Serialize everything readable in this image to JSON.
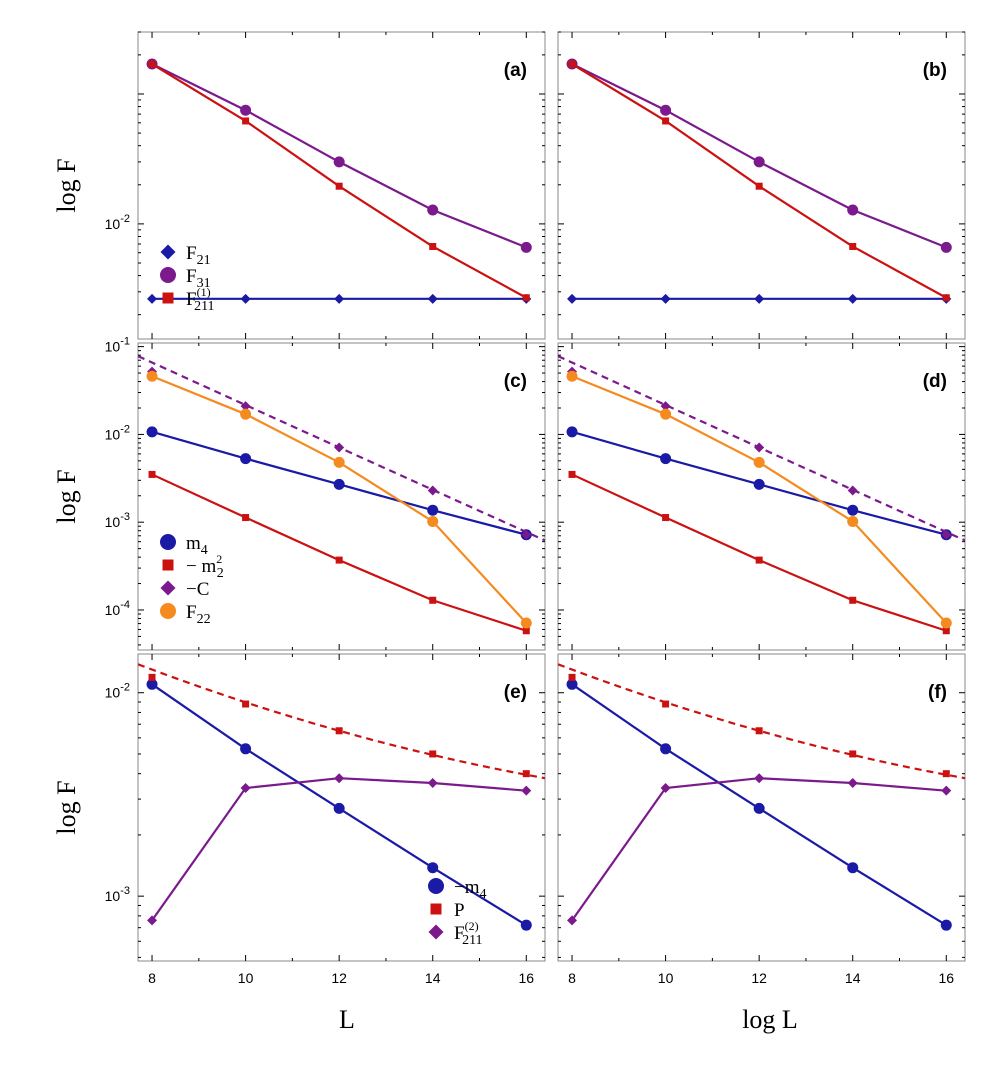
{
  "chart_data": {
    "type": "line",
    "x": [
      8,
      10,
      12,
      14,
      16
    ],
    "x_tick_labels": [
      "8",
      "10",
      "12",
      "14",
      "16"
    ],
    "xlim": [
      7.7,
      16.4
    ],
    "xlabel_left": "L",
    "xlabel_right": "log L",
    "ylabel": "log F",
    "y_scale": "log",
    "rows": [
      {
        "ylim": [
          0.0013,
          0.3
        ],
        "y_ticks": [
          {
            "value": 0.01,
            "base": "10",
            "exp": "-2"
          }
        ],
        "panel_tags": [
          "(a)",
          "(b)"
        ],
        "legend_position": "bottom-left",
        "series": [
          {
            "name": "F21",
            "legend": {
              "base": "F",
              "sub": "21",
              "sup": ""
            },
            "color": "#1a1aa6",
            "marker": "diamond",
            "dashed": false,
            "values": [
              0.00265,
              0.00265,
              0.00265,
              0.00265,
              0.00265
            ]
          },
          {
            "name": "F31",
            "legend": {
              "base": "F",
              "sub": "31",
              "sup": ""
            },
            "color": "#7b1a8c",
            "marker": "circle",
            "dashed": false,
            "values": [
              0.17,
              0.075,
              0.03,
              0.0128,
              0.0066
            ]
          },
          {
            "name": "F211(1)",
            "legend": {
              "base": "F",
              "sub": "211",
              "sup": "(1)"
            },
            "color": "#cc1111",
            "marker": "square",
            "dashed": false,
            "values": [
              0.17,
              0.062,
              0.0195,
              0.0067,
              0.0027
            ]
          }
        ]
      },
      {
        "ylim": [
          3.5e-05,
          0.11
        ],
        "y_ticks": [
          {
            "value": 0.1,
            "base": "10",
            "exp": "-1"
          },
          {
            "value": 0.01,
            "base": "10",
            "exp": "-2"
          },
          {
            "value": 0.001,
            "base": "10",
            "exp": "-3"
          },
          {
            "value": 0.0001,
            "base": "10",
            "exp": "-4"
          }
        ],
        "panel_tags": [
          "(c)",
          "(d)"
        ],
        "legend_position": "bottom-left",
        "series": [
          {
            "name": "m4",
            "legend": {
              "prefix": "",
              "base": "m",
              "sub": "4",
              "sup": ""
            },
            "color": "#1a1aa6",
            "marker": "circle",
            "dashed": false,
            "values": [
              0.0107,
              0.0053,
              0.0027,
              0.00137,
              0.00072
            ]
          },
          {
            "name": "- m2^2",
            "legend": {
              "prefix": "− ",
              "base": "m",
              "sub": "2",
              "sup": "2"
            },
            "color": "#cc1111",
            "marker": "square",
            "dashed": false,
            "values": [
              0.0035,
              0.00113,
              0.00037,
              0.000129,
              5.8e-05
            ]
          },
          {
            "name": "-C",
            "legend": {
              "prefix": "",
              "base": "−C",
              "sub": "",
              "sup": ""
            },
            "color": "#7b1a8c",
            "marker": "diamond",
            "dashed": true,
            "values": [
              0.052,
              0.021,
              0.0071,
              0.0023,
              0.00072
            ]
          },
          {
            "name": "F22",
            "legend": {
              "prefix": "",
              "base": "F",
              "sub": "22",
              "sup": ""
            },
            "color": "#f58a1f",
            "marker": "circle",
            "dashed": false,
            "values": [
              0.046,
              0.017,
              0.0048,
              0.00102,
              7.1e-05
            ]
          }
        ],
        "dashed_fit": {
          "series": "-C",
          "x_range": [
            7.7,
            16.4
          ],
          "y_range": [
            0.078,
            0.00062
          ]
        }
      },
      {
        "ylim": [
          0.00048,
          0.0155
        ],
        "y_ticks": [
          {
            "value": 0.01,
            "base": "10",
            "exp": "-2"
          },
          {
            "value": 0.001,
            "base": "10",
            "exp": "-3"
          }
        ],
        "panel_tags": [
          "(e)",
          "(f)"
        ],
        "legend_position": "bottom-right",
        "series": [
          {
            "name": "-m4",
            "legend": {
              "prefix": "",
              "base": "−m",
              "sub": "4",
              "sup": ""
            },
            "color": "#1a1aa6",
            "marker": "circle",
            "dashed": false,
            "values": [
              0.011,
              0.0053,
              0.0027,
              0.00138,
              0.00072
            ]
          },
          {
            "name": "P",
            "legend": {
              "prefix": "",
              "base": "P",
              "sub": "",
              "sup": ""
            },
            "color": "#cc1111",
            "marker": "square",
            "dashed": true,
            "values": [
              0.0119,
              0.0088,
              0.0065,
              0.005,
              0.004
            ]
          },
          {
            "name": "F211(2)",
            "legend": {
              "prefix": "",
              "base": "F",
              "sub": "211",
              "sup": "(2)"
            },
            "color": "#7b1a8c",
            "marker": "diamond",
            "dashed": false,
            "values": [
              0.00076,
              0.0034,
              0.0038,
              0.0036,
              0.0033
            ]
          }
        ],
        "dashed_fit": {
          "series": "P",
          "x_range": [
            7.7,
            16.4
          ],
          "y_range": [
            0.0138,
            0.0038
          ]
        }
      }
    ]
  }
}
